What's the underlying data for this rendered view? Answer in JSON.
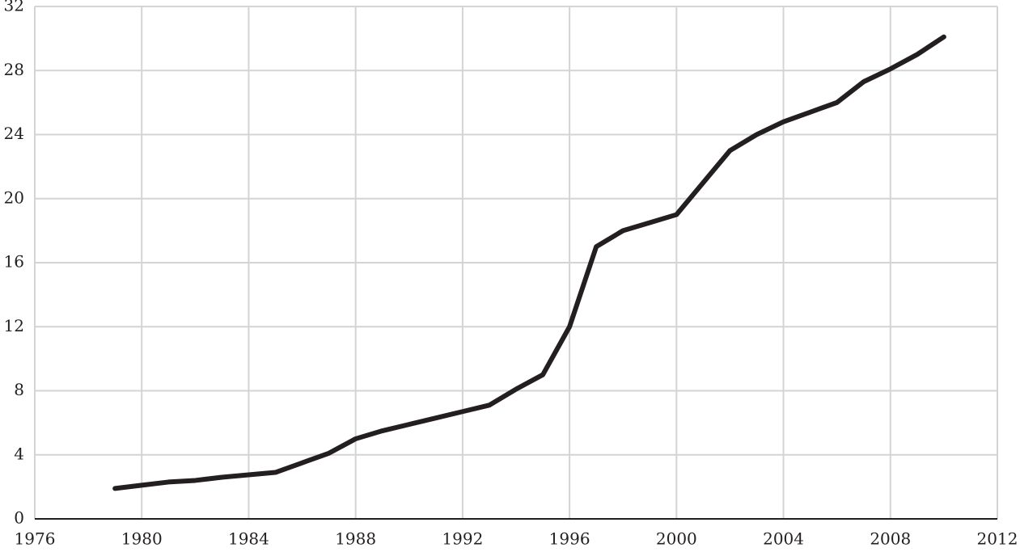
{
  "chart_data": {
    "type": "line",
    "x": [
      1979,
      1980,
      1981,
      1982,
      1983,
      1984,
      1985,
      1986,
      1987,
      1988,
      1989,
      1990,
      1991,
      1992,
      1993,
      1994,
      1995,
      1996,
      1997,
      1998,
      1999,
      2000,
      2001,
      2002,
      2003,
      2004,
      2005,
      2006,
      2007,
      2008,
      2009,
      2010
    ],
    "values": [
      1.9,
      2.1,
      2.3,
      2.4,
      2.6,
      2.75,
      2.9,
      3.5,
      4.1,
      5.0,
      5.5,
      5.9,
      6.3,
      6.7,
      7.1,
      8.1,
      9.0,
      12.0,
      17.0,
      18.0,
      18.5,
      19.0,
      21.0,
      23.0,
      24.0,
      24.8,
      25.4,
      26.0,
      27.3,
      28.1,
      29.0,
      30.1
    ],
    "color": "#231f20",
    "xlim": [
      1976,
      2012
    ],
    "xticks": [
      1976,
      1980,
      1984,
      1988,
      1992,
      1996,
      2000,
      2004,
      2008,
      2012
    ],
    "ylim": [
      0,
      32
    ],
    "yticks": [
      0,
      4,
      8,
      12,
      16,
      20,
      24,
      28,
      32
    ],
    "grid": true
  }
}
